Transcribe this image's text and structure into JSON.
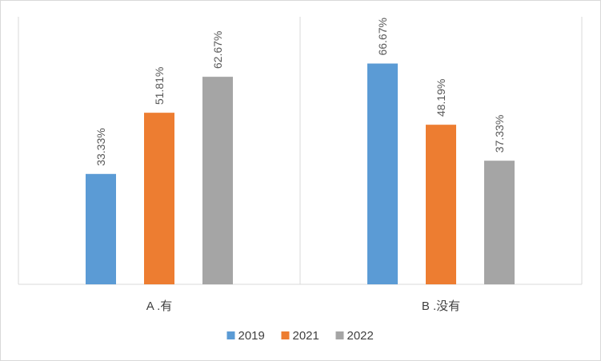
{
  "chart_data": {
    "type": "bar",
    "categories": [
      "A .有",
      "B .没有"
    ],
    "series": [
      {
        "name": "2019",
        "color": "#5B9BD5",
        "values": [
          33.33,
          66.67
        ],
        "labels": [
          "33.33%",
          "66.67%"
        ]
      },
      {
        "name": "2021",
        "color": "#ED7D31",
        "values": [
          51.81,
          48.19
        ],
        "labels": [
          "51.81%",
          "48.19%"
        ]
      },
      {
        "name": "2022",
        "color": "#A5A5A5",
        "values": [
          62.67,
          37.33
        ],
        "labels": [
          "62.67%",
          "37.33%"
        ]
      }
    ],
    "ylim": [
      0,
      75
    ],
    "grid": false,
    "legend": "bottom",
    "colors": {
      "axis": "#d9d9d9",
      "text": "#595959"
    }
  }
}
